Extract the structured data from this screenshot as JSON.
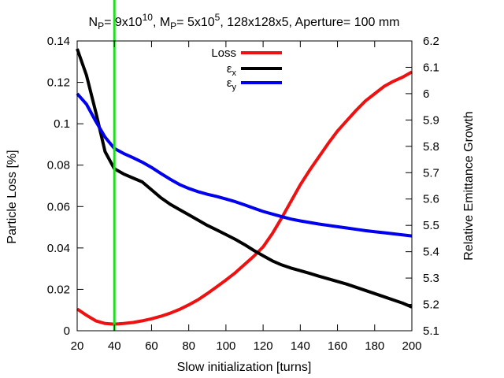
{
  "chart_data": {
    "type": "line",
    "title": {
      "parts": [
        {
          "t": "N",
          "s": "base"
        },
        {
          "t": "P",
          "s": "sub"
        },
        {
          "t": "= 9x10",
          "s": "base"
        },
        {
          "t": "10",
          "s": "sup"
        },
        {
          "t": ", M",
          "s": "base"
        },
        {
          "t": "P",
          "s": "sub"
        },
        {
          "t": "= 5x10",
          "s": "base"
        },
        {
          "t": "5",
          "s": "sup"
        },
        {
          "t": ", 128x128x5, Aperture= 100 mm",
          "s": "base"
        }
      ]
    },
    "xlabel": "Slow initialization [turns]",
    "ylabel_left": "Particle Loss [%]",
    "ylabel_right": "Relative Emittance Growth",
    "xlim": [
      20,
      200
    ],
    "ylim_left": [
      0,
      0.14
    ],
    "ylim_right": [
      5.1,
      6.2
    ],
    "x_ticks": [
      20,
      40,
      60,
      80,
      100,
      120,
      140,
      160,
      180,
      200
    ],
    "y_left_ticks": [
      0,
      0.02,
      0.04,
      0.06,
      0.08,
      0.1,
      0.12,
      0.14
    ],
    "y_left_tick_labels": [
      "0",
      "0.02",
      "0.04",
      "0.06",
      "0.08",
      "0.1",
      "0.12",
      "0.14"
    ],
    "y_right_ticks": [
      5.1,
      5.2,
      5.3,
      5.4,
      5.5,
      5.6,
      5.7,
      5.8,
      5.9,
      6,
      6.1,
      6.2
    ],
    "y_right_tick_labels": [
      "5.1",
      "5.2",
      "5.3",
      "5.4",
      "5.5",
      "5.6",
      "5.7",
      "5.8",
      "5.9",
      "6",
      "6.1",
      "6.2"
    ],
    "vline": {
      "x": 40,
      "color": "#22dd22"
    },
    "legend_position": "top-center",
    "series": [
      {
        "name": "Loss",
        "label_base": "Loss",
        "label_sub": "",
        "axis": "left",
        "color": "#ee1111",
        "x": [
          20,
          25,
          30,
          35,
          40,
          45,
          50,
          55,
          60,
          65,
          70,
          75,
          80,
          85,
          90,
          95,
          100,
          105,
          110,
          115,
          120,
          125,
          130,
          135,
          140,
          145,
          150,
          155,
          160,
          165,
          170,
          175,
          180,
          185,
          190,
          195,
          200
        ],
        "values": [
          0.0105,
          0.0075,
          0.0048,
          0.0035,
          0.0032,
          0.0035,
          0.004,
          0.0048,
          0.0058,
          0.007,
          0.0085,
          0.0103,
          0.0125,
          0.015,
          0.018,
          0.0212,
          0.0245,
          0.028,
          0.032,
          0.036,
          0.0405,
          0.047,
          0.0545,
          0.0625,
          0.0705,
          0.0775,
          0.084,
          0.0905,
          0.0965,
          0.1015,
          0.1065,
          0.111,
          0.1145,
          0.118,
          0.1205,
          0.1225,
          0.125
        ]
      },
      {
        "name": "εx",
        "label_base": "ε",
        "label_sub": "x",
        "axis": "right",
        "color": "#000000",
        "x": [
          20,
          25,
          30,
          35,
          40,
          45,
          50,
          55,
          60,
          65,
          70,
          75,
          80,
          85,
          90,
          95,
          100,
          105,
          110,
          115,
          120,
          125,
          130,
          135,
          140,
          145,
          150,
          155,
          160,
          165,
          170,
          175,
          180,
          185,
          190,
          195,
          200
        ],
        "values": [
          6.17,
          6.07,
          5.93,
          5.78,
          5.715,
          5.695,
          5.68,
          5.665,
          5.635,
          5.605,
          5.58,
          5.56,
          5.54,
          5.52,
          5.5,
          5.483,
          5.465,
          5.447,
          5.427,
          5.405,
          5.385,
          5.365,
          5.35,
          5.338,
          5.328,
          5.318,
          5.307,
          5.297,
          5.287,
          5.277,
          5.265,
          5.253,
          5.241,
          5.229,
          5.217,
          5.205,
          5.19
        ]
      },
      {
        "name": "εy",
        "label_base": "ε",
        "label_sub": "y",
        "axis": "right",
        "color": "#0000ee",
        "x": [
          20,
          25,
          30,
          35,
          40,
          45,
          50,
          55,
          60,
          65,
          70,
          75,
          80,
          85,
          90,
          95,
          100,
          105,
          110,
          115,
          120,
          125,
          130,
          135,
          140,
          145,
          150,
          155,
          160,
          165,
          170,
          175,
          180,
          185,
          190,
          195,
          200
        ],
        "values": [
          6.0,
          5.96,
          5.895,
          5.835,
          5.792,
          5.773,
          5.757,
          5.74,
          5.72,
          5.697,
          5.675,
          5.655,
          5.64,
          5.628,
          5.618,
          5.61,
          5.6,
          5.59,
          5.578,
          5.565,
          5.553,
          5.543,
          5.533,
          5.524,
          5.517,
          5.511,
          5.505,
          5.5,
          5.495,
          5.49,
          5.485,
          5.48,
          5.476,
          5.472,
          5.468,
          5.464,
          5.46
        ]
      }
    ]
  }
}
